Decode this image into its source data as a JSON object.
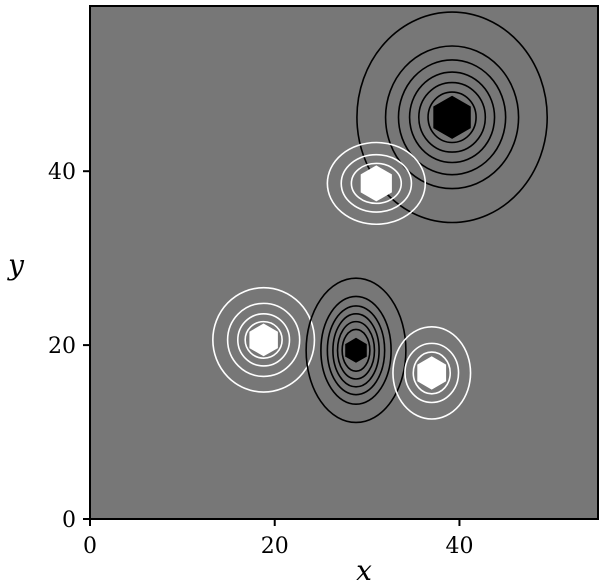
{
  "chart_data": {
    "type": "contour",
    "xlabel": "x",
    "ylabel": "y",
    "xlim": [
      0,
      55
    ],
    "ylim": [
      0,
      59
    ],
    "xticks": [
      "0",
      "20",
      "40"
    ],
    "yticks": [
      "0",
      "20",
      "40"
    ],
    "background_color": "#777777",
    "grid": false,
    "contour_sets": [
      {
        "name": "negative-top-right",
        "color": "#000000",
        "center": [
          39.2,
          46.2
        ],
        "filled_core": true,
        "levels": [
          {
            "rx": 10.3,
            "ry": 12.1
          },
          {
            "rx": 7.2,
            "ry": 8.2
          },
          {
            "rx": 5.8,
            "ry": 6.6
          },
          {
            "rx": 4.6,
            "ry": 5.2
          },
          {
            "rx": 3.6,
            "ry": 4.0
          },
          {
            "rx": 2.6,
            "ry": 2.9
          }
        ]
      },
      {
        "name": "positive-mid",
        "color": "#ffffff",
        "center": [
          31.0,
          38.6
        ],
        "filled_core": true,
        "levels": [
          {
            "rx": 5.3,
            "ry": 4.7
          },
          {
            "rx": 3.8,
            "ry": 3.3
          },
          {
            "rx": 2.7,
            "ry": 2.3
          }
        ]
      },
      {
        "name": "positive-lower-left",
        "color": "#ffffff",
        "center": [
          18.8,
          20.6
        ],
        "filled_core": true,
        "levels": [
          {
            "rx": 5.5,
            "ry": 6.0
          },
          {
            "rx": 3.9,
            "ry": 4.2
          },
          {
            "rx": 2.8,
            "ry": 3.0
          },
          {
            "rx": 2.0,
            "ry": 2.1
          }
        ]
      },
      {
        "name": "negative-lower-center",
        "color": "#000000",
        "center": [
          28.8,
          19.4
        ],
        "filled_core": true,
        "levels": [
          {
            "rx": 5.4,
            "ry": 8.3
          },
          {
            "rx": 3.8,
            "ry": 6.2
          },
          {
            "rx": 3.1,
            "ry": 5.1
          },
          {
            "rx": 2.5,
            "ry": 4.2
          },
          {
            "rx": 2.0,
            "ry": 3.3
          },
          {
            "rx": 1.5,
            "ry": 2.4
          }
        ]
      },
      {
        "name": "positive-lower-right",
        "color": "#ffffff",
        "center": [
          37.0,
          16.8
        ],
        "filled_core": true,
        "levels": [
          {
            "rx": 4.2,
            "ry": 5.3
          },
          {
            "rx": 2.9,
            "ry": 3.4
          },
          {
            "rx": 2.0,
            "ry": 2.4
          }
        ]
      }
    ]
  }
}
